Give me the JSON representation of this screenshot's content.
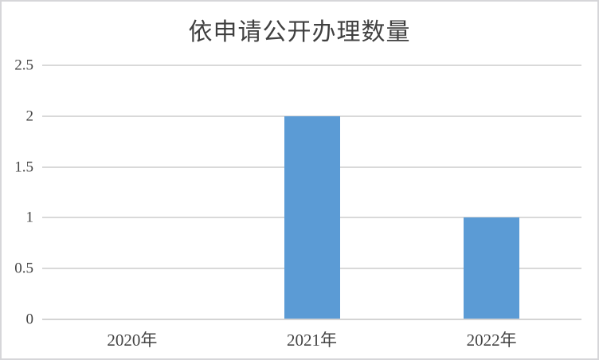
{
  "chart_data": {
    "type": "bar",
    "title": "依申请公开办理数量",
    "categories": [
      "2020年",
      "2021年",
      "2022年"
    ],
    "values": [
      0,
      2,
      1
    ],
    "xlabel": "",
    "ylabel": "",
    "ylim": [
      0,
      2.5
    ],
    "yticks": [
      0,
      0.5,
      1,
      1.5,
      2,
      2.5
    ],
    "ytick_labels": [
      "0",
      "0.5",
      "1",
      "1.5",
      "2",
      "2.5"
    ],
    "grid": true,
    "legend_position": "none",
    "colors": {
      "bar": "#5b9bd5",
      "gridline": "#d9d9d9",
      "axis_line": "#d4d4d4",
      "title_text": "#404040",
      "tick_text": "#444444",
      "frame_border": "#d6d6d9",
      "background": "#ffffff"
    }
  }
}
